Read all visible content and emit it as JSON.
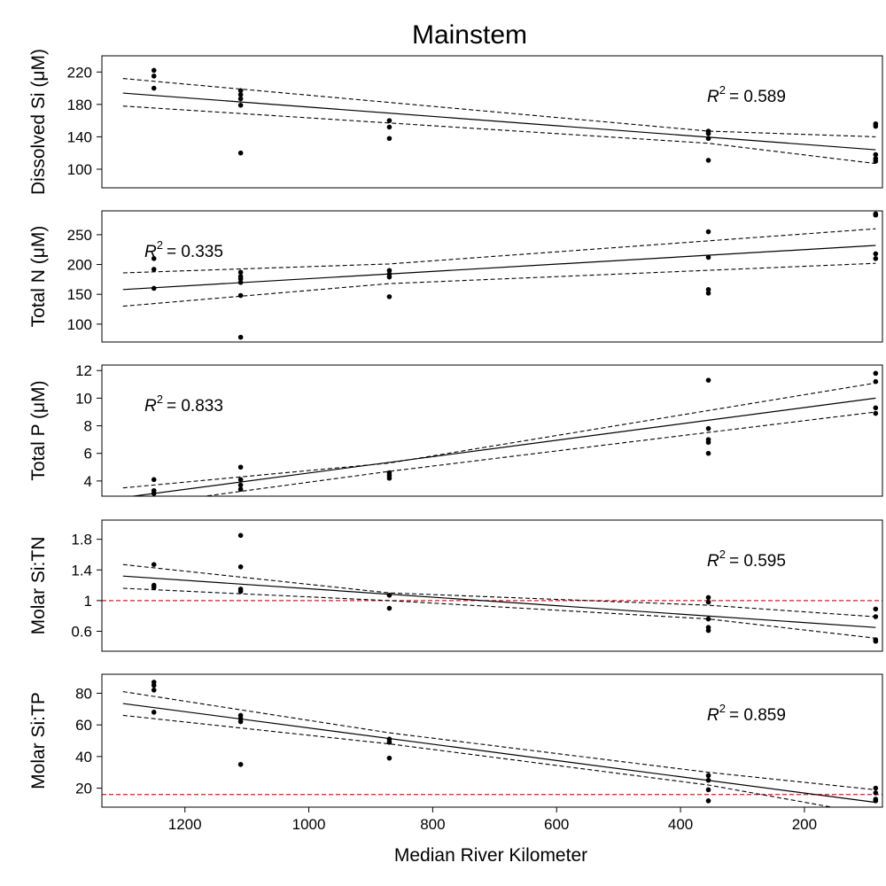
{
  "figure": {
    "title": "Mainstem",
    "xlabel": "Median River Kilometer",
    "xlim": [
      1334,
      74
    ],
    "xticks": [
      1200,
      1000,
      800,
      600,
      400,
      200
    ],
    "xdir": "reversed",
    "colors": {
      "points": "#000000",
      "fit_line": "#000000",
      "confidence_band": "#000000",
      "reference_line": "#cc2222"
    }
  },
  "chart_data": [
    {
      "type": "scatter",
      "id": "si",
      "ylabel": "Dissolved Si (μM)",
      "ylim": [
        77,
        240
      ],
      "yticks": [
        100,
        140,
        180,
        220
      ],
      "r2": {
        "label": "R",
        "sup": "2",
        "value": "= 0.589",
        "placement": "top-right"
      },
      "reference_line": null,
      "points": [
        {
          "x": 1250,
          "y": 222
        },
        {
          "x": 1250,
          "y": 215
        },
        {
          "x": 1250,
          "y": 200
        },
        {
          "x": 1110,
          "y": 197
        },
        {
          "x": 1110,
          "y": 192
        },
        {
          "x": 1110,
          "y": 187
        },
        {
          "x": 1110,
          "y": 179
        },
        {
          "x": 1110,
          "y": 120
        },
        {
          "x": 870,
          "y": 160
        },
        {
          "x": 870,
          "y": 152
        },
        {
          "x": 870,
          "y": 138
        },
        {
          "x": 355,
          "y": 147
        },
        {
          "x": 355,
          "y": 144
        },
        {
          "x": 355,
          "y": 138
        },
        {
          "x": 355,
          "y": 111
        },
        {
          "x": 85,
          "y": 156
        },
        {
          "x": 85,
          "y": 153
        },
        {
          "x": 85,
          "y": 118
        },
        {
          "x": 85,
          "y": 113
        },
        {
          "x": 85,
          "y": 110
        }
      ],
      "fit": {
        "x": [
          1300,
          85
        ],
        "y": [
          194,
          124
        ]
      },
      "band_upper": {
        "x": [
          1300,
          355,
          85
        ],
        "y": [
          212,
          147,
          140
        ]
      },
      "band_lower": {
        "x": [
          1300,
          355,
          85
        ],
        "y": [
          178,
          132,
          107
        ]
      }
    },
    {
      "type": "scatter",
      "id": "tn",
      "ylabel": "Total N (μM)",
      "ylim": [
        70,
        290
      ],
      "yticks": [
        100,
        150,
        200,
        250
      ],
      "r2": {
        "label": "R",
        "sup": "2",
        "value": "= 0.335",
        "placement": "top-left"
      },
      "reference_line": null,
      "points": [
        {
          "x": 1250,
          "y": 210
        },
        {
          "x": 1250,
          "y": 192
        },
        {
          "x": 1250,
          "y": 160
        },
        {
          "x": 1110,
          "y": 187
        },
        {
          "x": 1110,
          "y": 180
        },
        {
          "x": 1110,
          "y": 176
        },
        {
          "x": 1110,
          "y": 170
        },
        {
          "x": 1110,
          "y": 148
        },
        {
          "x": 1110,
          "y": 78
        },
        {
          "x": 870,
          "y": 190
        },
        {
          "x": 870,
          "y": 184
        },
        {
          "x": 870,
          "y": 179
        },
        {
          "x": 870,
          "y": 146
        },
        {
          "x": 355,
          "y": 255
        },
        {
          "x": 355,
          "y": 212
        },
        {
          "x": 355,
          "y": 158
        },
        {
          "x": 355,
          "y": 152
        },
        {
          "x": 85,
          "y": 285
        },
        {
          "x": 85,
          "y": 283
        },
        {
          "x": 85,
          "y": 218
        },
        {
          "x": 85,
          "y": 210
        }
      ],
      "fit": {
        "x": [
          1300,
          85
        ],
        "y": [
          158,
          232
        ]
      },
      "band_upper": {
        "x": [
          1300,
          870,
          85
        ],
        "y": [
          186,
          201,
          260
        ]
      },
      "band_lower": {
        "x": [
          1300,
          870,
          85
        ],
        "y": [
          130,
          168,
          202
        ]
      }
    },
    {
      "type": "scatter",
      "id": "tp",
      "ylabel": "Total P (μM)",
      "ylim": [
        2.9,
        12.4
      ],
      "yticks": [
        4,
        6,
        8,
        10,
        12
      ],
      "r2": {
        "label": "R",
        "sup": "2",
        "value": "= 0.833",
        "placement": "top-left"
      },
      "reference_line": null,
      "points": [
        {
          "x": 1250,
          "y": 4.1
        },
        {
          "x": 1250,
          "y": 3.3
        },
        {
          "x": 1250,
          "y": 3.1
        },
        {
          "x": 1110,
          "y": 5.0
        },
        {
          "x": 1110,
          "y": 4.1
        },
        {
          "x": 1110,
          "y": 3.7
        },
        {
          "x": 1110,
          "y": 3.4
        },
        {
          "x": 870,
          "y": 4.6
        },
        {
          "x": 870,
          "y": 4.4
        },
        {
          "x": 870,
          "y": 4.2
        },
        {
          "x": 355,
          "y": 11.3
        },
        {
          "x": 355,
          "y": 7.8
        },
        {
          "x": 355,
          "y": 7.0
        },
        {
          "x": 355,
          "y": 6.8
        },
        {
          "x": 355,
          "y": 6.0
        },
        {
          "x": 85,
          "y": 11.8
        },
        {
          "x": 85,
          "y": 11.2
        },
        {
          "x": 85,
          "y": 9.3
        },
        {
          "x": 85,
          "y": 8.9
        }
      ],
      "fit": {
        "x": [
          1300,
          85
        ],
        "y": [
          2.8,
          10.0
        ]
      },
      "band_upper": {
        "x": [
          1300,
          870,
          85
        ],
        "y": [
          3.5,
          5.3,
          11.1
        ]
      },
      "band_lower": {
        "x": [
          1300,
          870,
          85
        ],
        "y": [
          2.1,
          4.7,
          9.0
        ]
      }
    },
    {
      "type": "scatter",
      "id": "sitn",
      "ylabel": "Molar Si:TN",
      "ylim": [
        0.34,
        2.05
      ],
      "yticks": [
        0.6,
        1,
        1.4,
        1.8
      ],
      "r2": {
        "label": "R",
        "sup": "2",
        "value": "= 0.595",
        "placement": "top-right"
      },
      "reference_line": {
        "y": 1
      },
      "points": [
        {
          "x": 1250,
          "y": 1.47
        },
        {
          "x": 1250,
          "y": 1.2
        },
        {
          "x": 1250,
          "y": 1.17
        },
        {
          "x": 1110,
          "y": 1.85
        },
        {
          "x": 1110,
          "y": 1.44
        },
        {
          "x": 1110,
          "y": 1.15
        },
        {
          "x": 1110,
          "y": 1.12
        },
        {
          "x": 870,
          "y": 1.07
        },
        {
          "x": 870,
          "y": 0.9
        },
        {
          "x": 355,
          "y": 1.04
        },
        {
          "x": 355,
          "y": 0.98
        },
        {
          "x": 355,
          "y": 0.76
        },
        {
          "x": 355,
          "y": 0.65
        },
        {
          "x": 355,
          "y": 0.61
        },
        {
          "x": 85,
          "y": 0.89
        },
        {
          "x": 85,
          "y": 0.79
        },
        {
          "x": 85,
          "y": 0.49
        },
        {
          "x": 85,
          "y": 0.47
        }
      ],
      "fit": {
        "x": [
          1300,
          85
        ],
        "y": [
          1.32,
          0.65
        ]
      },
      "band_upper": {
        "x": [
          1300,
          870,
          355,
          85
        ],
        "y": [
          1.47,
          1.1,
          0.94,
          0.79
        ]
      },
      "band_lower": {
        "x": [
          1300,
          870,
          355,
          85
        ],
        "y": [
          1.16,
          1.0,
          0.76,
          0.51
        ]
      }
    },
    {
      "type": "scatter",
      "id": "sitp",
      "ylabel": "Molar Si:TP",
      "ylim": [
        8,
        92
      ],
      "yticks": [
        20,
        40,
        60,
        80
      ],
      "r2": {
        "label": "R",
        "sup": "2",
        "value": "= 0.859",
        "placement": "top-right"
      },
      "reference_line": {
        "y": 16
      },
      "points": [
        {
          "x": 1250,
          "y": 87
        },
        {
          "x": 1250,
          "y": 85
        },
        {
          "x": 1250,
          "y": 82
        },
        {
          "x": 1250,
          "y": 68
        },
        {
          "x": 1110,
          "y": 66
        },
        {
          "x": 1110,
          "y": 64
        },
        {
          "x": 1110,
          "y": 62
        },
        {
          "x": 1110,
          "y": 35
        },
        {
          "x": 870,
          "y": 51
        },
        {
          "x": 870,
          "y": 49
        },
        {
          "x": 870,
          "y": 39
        },
        {
          "x": 355,
          "y": 28
        },
        {
          "x": 355,
          "y": 25
        },
        {
          "x": 355,
          "y": 19
        },
        {
          "x": 355,
          "y": 12
        },
        {
          "x": 85,
          "y": 20
        },
        {
          "x": 85,
          "y": 17
        },
        {
          "x": 85,
          "y": 13
        },
        {
          "x": 85,
          "y": 12
        }
      ],
      "fit": {
        "x": [
          1300,
          85
        ],
        "y": [
          73.5,
          11
        ]
      },
      "band_upper": {
        "x": [
          1300,
          870,
          355,
          85
        ],
        "y": [
          81,
          55,
          30,
          19
        ]
      },
      "band_lower": {
        "x": [
          1300,
          870,
          355,
          85
        ],
        "y": [
          66,
          48,
          22,
          3
        ]
      }
    }
  ]
}
